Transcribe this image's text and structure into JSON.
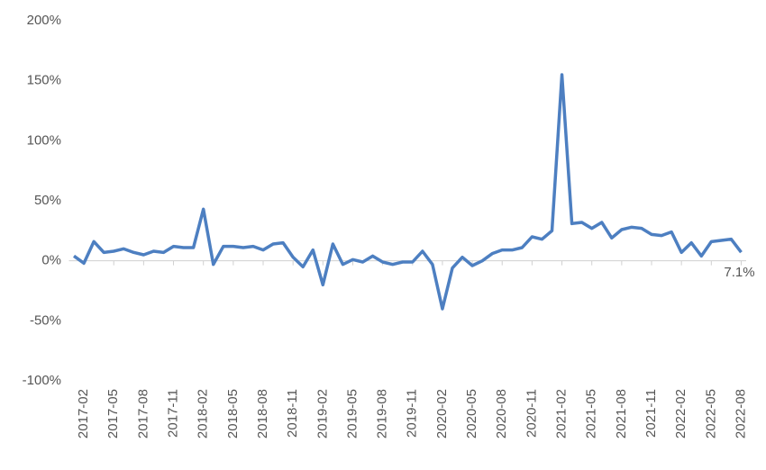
{
  "chart_data": {
    "type": "line",
    "categories": [
      null,
      "2017-02",
      null,
      null,
      "2017-05",
      null,
      null,
      "2017-08",
      null,
      null,
      "2017-11",
      null,
      null,
      "2018-02",
      null,
      null,
      "2018-05",
      null,
      null,
      "2018-08",
      null,
      null,
      "2018-11",
      null,
      null,
      "2019-02",
      null,
      null,
      "2019-05",
      null,
      null,
      "2019-08",
      null,
      null,
      "2019-11",
      null,
      null,
      "2020-02",
      null,
      null,
      "2020-05",
      null,
      null,
      "2020-08",
      null,
      null,
      "2020-11",
      null,
      null,
      "2021-02",
      null,
      null,
      "2021-05",
      null,
      null,
      "2021-08",
      null,
      null,
      "2021-11",
      null,
      null,
      "2022-02",
      null,
      null,
      "2022-05",
      null,
      null,
      "2022-08"
    ],
    "series": [
      {
        "color": "#4d7fc1",
        "values": [
          4,
          -2,
          16,
          7,
          8,
          10,
          7,
          5,
          8,
          7,
          12,
          11,
          11,
          43,
          -3,
          12,
          12,
          11,
          12,
          9,
          14,
          15,
          3,
          -5,
          9,
          -20,
          14,
          -3,
          1,
          -1,
          4,
          -1,
          -3,
          -1,
          -1,
          8,
          -3,
          -40,
          -6,
          3,
          -4,
          0,
          6,
          9,
          9,
          11,
          20,
          18,
          25,
          155,
          31,
          32,
          27,
          32,
          19,
          26,
          28,
          27,
          22,
          21,
          24,
          7,
          15,
          4,
          16,
          17,
          18,
          7.1
        ],
        "value_labels": [
          null,
          null,
          null,
          null,
          null,
          null,
          null,
          null,
          null,
          null,
          null,
          null,
          null,
          null,
          null,
          null,
          null,
          null,
          null,
          null,
          null,
          null,
          null,
          null,
          null,
          null,
          null,
          null,
          null,
          null,
          null,
          null,
          null,
          null,
          null,
          null,
          null,
          null,
          null,
          null,
          null,
          null,
          null,
          null,
          null,
          null,
          null,
          null,
          null,
          null,
          null,
          null,
          null,
          null,
          null,
          null,
          null,
          null,
          null,
          null,
          null,
          null,
          null,
          null,
          null,
          null,
          null,
          "7.1%"
        ]
      }
    ],
    "ylim": [
      -100,
      200
    ],
    "yticks": [
      {
        "value": -100,
        "label": "-100%"
      },
      {
        "value": -50,
        "label": "-50%"
      },
      {
        "value": 0,
        "label": "0%"
      },
      {
        "value": 50,
        "label": "50%"
      },
      {
        "value": 100,
        "label": "100%"
      },
      {
        "value": 150,
        "label": "150%"
      },
      {
        "value": 200,
        "label": "200%"
      }
    ],
    "grid": false
  }
}
